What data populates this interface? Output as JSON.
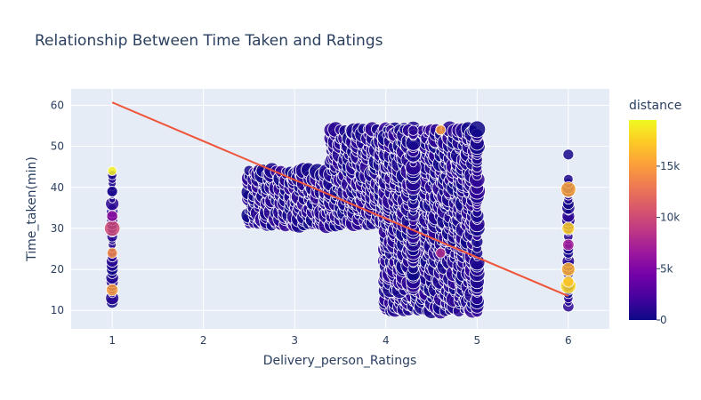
{
  "chart_data": {
    "type": "scatter",
    "title": "Relationship Between Time Taken and Ratings",
    "xlabel": "Delivery_person_Ratings",
    "ylabel": "Time_taken(min)",
    "xlim": [
      0.55,
      6.45
    ],
    "ylim": [
      5.5,
      64
    ],
    "x_ticks": [
      1,
      2,
      3,
      4,
      5,
      6
    ],
    "y_ticks": [
      10,
      20,
      30,
      40,
      50,
      60
    ],
    "grid": true,
    "colors": {
      "plot_bg": "#e5ecf6",
      "grid": "#ffffff",
      "marker_default": "#0d0887",
      "trendline": "#ef553b",
      "colorscale": [
        "#0d0887",
        "#46039f",
        "#7201a8",
        "#9c179e",
        "#bd3786",
        "#d8576b",
        "#ed7953",
        "#fb9f3a",
        "#fdca26",
        "#f0f921"
      ]
    },
    "colorbar": {
      "title": "distance",
      "min": 0,
      "max": 19500,
      "ticks": [
        {
          "value": 0,
          "label": "0"
        },
        {
          "value": 5000,
          "label": "5k"
        },
        {
          "value": 10000,
          "label": "10k"
        },
        {
          "value": 15000,
          "label": "15k"
        }
      ]
    },
    "trendline": {
      "x": [
        1,
        6
      ],
      "y": [
        60.7,
        13.5
      ]
    },
    "clusters": [
      {
        "x_range": [
          2.5,
          3.0
        ],
        "y_range": [
          31,
          44
        ]
      },
      {
        "x_range": [
          3.0,
          3.4
        ],
        "y_range": [
          31,
          44
        ]
      },
      {
        "x_range": [
          3.4,
          4.0
        ],
        "y_range": [
          31,
          54
        ]
      },
      {
        "x_range": [
          4.0,
          5.0
        ],
        "y_range": [
          10,
          54
        ]
      },
      {
        "x_range": [
          4.0,
          4.3
        ],
        "y_range": [
          15,
          54
        ]
      }
    ],
    "highlight_points": [
      {
        "x": 1,
        "y": 44,
        "distance": 19000
      },
      {
        "x": 1,
        "y": 15,
        "distance": 15000
      },
      {
        "x": 1,
        "y": 30,
        "distance": 10000
      },
      {
        "x": 1,
        "y": 33,
        "distance": 6000
      },
      {
        "x": 1,
        "y": 24,
        "distance": 14000
      },
      {
        "x": 1,
        "y": 39,
        "distance": 500
      },
      {
        "x": 6,
        "y": 48,
        "distance": 300
      },
      {
        "x": 6,
        "y": 39.5,
        "distance": 15500
      },
      {
        "x": 6,
        "y": 30,
        "distance": 17500
      },
      {
        "x": 6,
        "y": 26,
        "distance": 7000
      },
      {
        "x": 6,
        "y": 20,
        "distance": 16000
      },
      {
        "x": 6,
        "y": 16,
        "distance": 18000
      },
      {
        "x": 6,
        "y": 17,
        "distance": 17000
      },
      {
        "x": 4.6,
        "y": 54,
        "distance": 15000
      },
      {
        "x": 4.6,
        "y": 24,
        "distance": 8000
      }
    ]
  }
}
